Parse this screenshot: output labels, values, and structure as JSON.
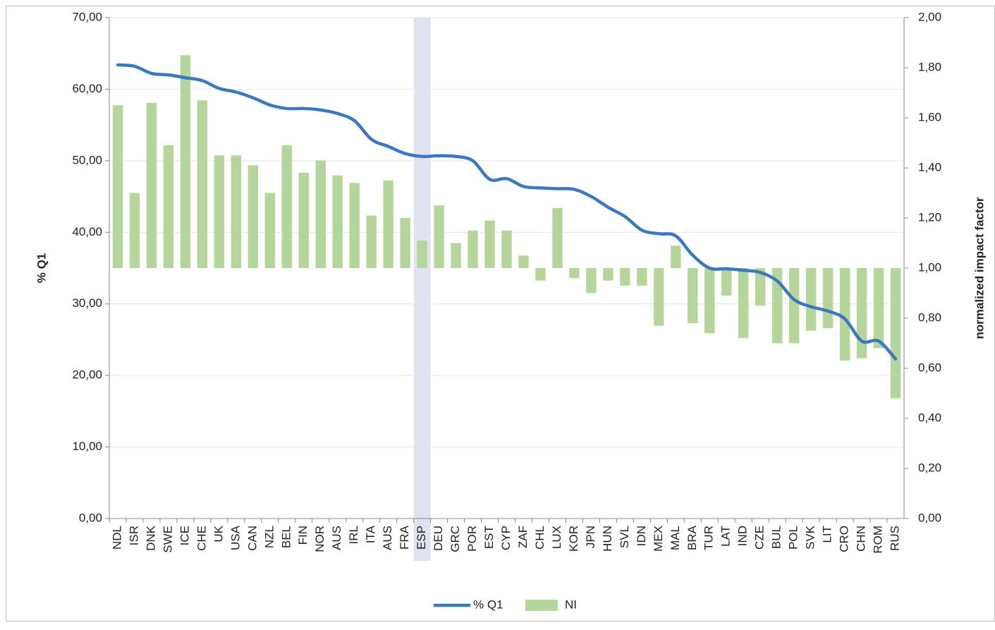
{
  "chart_data": {
    "type": "combo",
    "categories": [
      "NDL",
      "ISR",
      "DNK",
      "SWE",
      "ICE",
      "CHE",
      "UK",
      "USA",
      "CAN",
      "NZL",
      "BEL",
      "FIN",
      "NOR",
      "AUS",
      "IRL",
      "ITA",
      "AUS",
      "FRA",
      "ESP",
      "DEU",
      "GRC",
      "POR",
      "EST",
      "CYP",
      "ZAF",
      "CHL",
      "LUX",
      "KOR",
      "JPN",
      "HUN",
      "SVL",
      "IDN",
      "MEX",
      "MAL",
      "BRA",
      "TUR",
      "LAT",
      "IND",
      "CZE",
      "BUL",
      "POL",
      "SVK",
      "LIT",
      "CRO",
      "CHN",
      "ROM",
      "RUS"
    ],
    "series": [
      {
        "name": "% Q1",
        "type": "line",
        "color": "#3c78c0",
        "smooth": true,
        "values": [
          63.4,
          63.2,
          62.2,
          62.0,
          61.6,
          61.2,
          60.1,
          59.6,
          58.8,
          57.8,
          57.3,
          57.3,
          57.1,
          56.6,
          55.6,
          53.0,
          52.0,
          51.0,
          50.6,
          50.7,
          50.6,
          50.0,
          47.4,
          47.5,
          46.4,
          46.2,
          46.1,
          46.0,
          45.0,
          43.5,
          42.2,
          40.3,
          39.8,
          39.5,
          36.8,
          35.0,
          34.9,
          34.7,
          34.4,
          33.2,
          30.6,
          29.6,
          29.0,
          27.9,
          24.8,
          24.8,
          22.3
        ]
      },
      {
        "name": "NI",
        "type": "bar",
        "axis": "y2",
        "color": "#b5d69a",
        "base": 1,
        "values": [
          1.65,
          1.3,
          1.66,
          1.49,
          1.85,
          1.67,
          1.45,
          1.45,
          1.41,
          1.3,
          1.49,
          1.38,
          1.43,
          1.37,
          1.34,
          1.21,
          1.35,
          1.2,
          1.11,
          1.25,
          1.1,
          1.15,
          1.19,
          1.15,
          1.05,
          0.95,
          1.24,
          0.96,
          0.9,
          0.95,
          0.93,
          0.93,
          0.77,
          1.09,
          0.78,
          0.74,
          0.89,
          0.72,
          0.85,
          0.7,
          0.7,
          0.75,
          0.76,
          0.63,
          0.64,
          0.68,
          0.48
        ]
      }
    ],
    "ylabel": "% Q1",
    "y2label": "normalized impact factor",
    "ylim": [
      0,
      70
    ],
    "yticks": [
      {
        "value": 0,
        "label": "0,00"
      },
      {
        "value": 10,
        "label": "10,00"
      },
      {
        "value": 20,
        "label": "20,00"
      },
      {
        "value": 30,
        "label": "30,00"
      },
      {
        "value": 40,
        "label": "40,00"
      },
      {
        "value": 50,
        "label": "50,00"
      },
      {
        "value": 60,
        "label": "60,00"
      },
      {
        "value": 70,
        "label": "70,00"
      }
    ],
    "y2lim": [
      0,
      2
    ],
    "y2ticks": [
      {
        "value": 0,
        "label": "0,00"
      },
      {
        "value": 0.2,
        "label": "0,20"
      },
      {
        "value": 0.4,
        "label": "0,40"
      },
      {
        "value": 0.6,
        "label": "0,60"
      },
      {
        "value": 0.8,
        "label": "0,80"
      },
      {
        "value": 1,
        "label": "1,00"
      },
      {
        "value": 1.2,
        "label": "1,20"
      },
      {
        "value": 1.4,
        "label": "1,40"
      },
      {
        "value": 1.6,
        "label": "1,60"
      },
      {
        "value": 1.8,
        "label": "1,80"
      },
      {
        "value": 2,
        "label": "2,00"
      }
    ],
    "grid": true,
    "legend": "bottom",
    "highlight": "ESP"
  }
}
